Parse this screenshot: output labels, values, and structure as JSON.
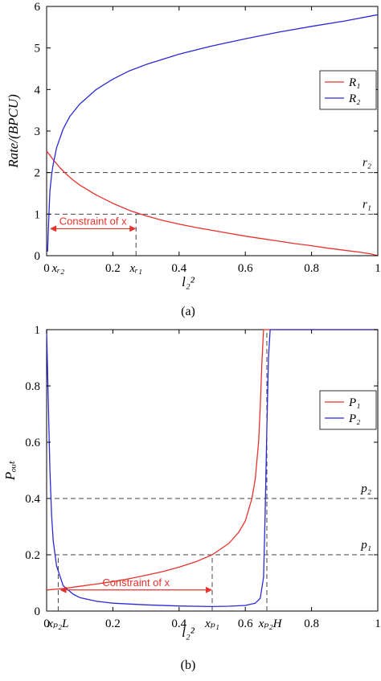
{
  "colors": {
    "red": "#e8322b",
    "blue": "#2a2ad8",
    "dash": "#444444",
    "axis": "#000000"
  },
  "chart_data": [
    {
      "type": "line",
      "caption": "(a)",
      "xlabel": "l₂²",
      "ylabel": "Rate/(BPCU)",
      "xlim": [
        0,
        1
      ],
      "ylim": [
        0,
        6
      ],
      "xticks": [
        "0",
        "0.2",
        "0.4",
        "0.6",
        "0.8",
        "1"
      ],
      "yticks": [
        "0",
        "1",
        "2",
        "3",
        "4",
        "5",
        "6"
      ],
      "legend_position": "top-right",
      "series": [
        {
          "name": "R₁",
          "color": "red",
          "x": [
            0,
            0.02,
            0.04,
            0.06,
            0.08,
            0.1,
            0.15,
            0.2,
            0.25,
            0.3,
            0.35,
            0.4,
            0.45,
            0.5,
            0.55,
            0.6,
            0.65,
            0.7,
            0.75,
            0.8,
            0.85,
            0.9,
            0.95,
            0.98,
            1.0
          ],
          "y": [
            2.52,
            2.31,
            2.12,
            1.96,
            1.82,
            1.7,
            1.46,
            1.26,
            1.09,
            0.96,
            0.85,
            0.76,
            0.68,
            0.61,
            0.54,
            0.47,
            0.41,
            0.35,
            0.29,
            0.24,
            0.18,
            0.13,
            0.08,
            0.04,
            0.0
          ]
        },
        {
          "name": "R₂",
          "color": "blue",
          "x": [
            0.003,
            0.005,
            0.008,
            0.01,
            0.015,
            0.02,
            0.03,
            0.05,
            0.07,
            0.1,
            0.15,
            0.2,
            0.25,
            0.3,
            0.4,
            0.5,
            0.6,
            0.7,
            0.8,
            0.9,
            1.0
          ],
          "y": [
            0.1,
            0.6,
            1.2,
            1.55,
            1.95,
            2.2,
            2.6,
            3.05,
            3.35,
            3.65,
            4.0,
            4.25,
            4.45,
            4.6,
            4.85,
            5.05,
            5.22,
            5.38,
            5.52,
            5.65,
            5.8
          ]
        }
      ],
      "hlines": [
        {
          "y": 2,
          "label": "r₂"
        },
        {
          "y": 1,
          "label": "r₁"
        }
      ],
      "vlines": [
        {
          "x": 0.27,
          "ymax": 1
        }
      ],
      "annotation": {
        "text": "Constraint of x",
        "y": 0.65,
        "x_from": 0.01,
        "x_to": 0.27
      },
      "extra_xlabels": [
        {
          "x": 0.035,
          "text": "xᵣ₂"
        },
        {
          "x": 0.27,
          "text": "xᵣ₁"
        }
      ]
    },
    {
      "type": "line",
      "caption": "(b)",
      "xlabel": "l₂²",
      "ylabel": "Pₒᵤₜ",
      "xlim": [
        0,
        1
      ],
      "ylim": [
        0,
        1
      ],
      "xticks": [
        "0",
        "0.2",
        "0.4",
        "0.6",
        "0.8",
        "1"
      ],
      "yticks": [
        "0",
        "0.2",
        "0.4",
        "0.6",
        "0.8",
        "1"
      ],
      "legend_position": "top-right",
      "series": [
        {
          "name": "P₁",
          "color": "red",
          "x": [
            0,
            0.05,
            0.1,
            0.15,
            0.2,
            0.25,
            0.3,
            0.35,
            0.4,
            0.45,
            0.5,
            0.55,
            0.58,
            0.6,
            0.62,
            0.63,
            0.64,
            0.645,
            0.65,
            0.655,
            1.0
          ],
          "y": [
            0.075,
            0.08,
            0.088,
            0.096,
            0.105,
            0.115,
            0.127,
            0.14,
            0.156,
            0.175,
            0.2,
            0.24,
            0.28,
            0.32,
            0.4,
            0.47,
            0.6,
            0.72,
            0.88,
            1.0,
            1.0
          ]
        },
        {
          "name": "P₂",
          "color": "blue",
          "x": [
            0,
            0.01,
            0.015,
            0.02,
            0.03,
            0.05,
            0.08,
            0.1,
            0.15,
            0.2,
            0.3,
            0.4,
            0.5,
            0.55,
            0.6,
            0.63,
            0.645,
            0.655,
            0.66,
            0.665,
            0.67,
            0.675,
            1.0
          ],
          "y": [
            1.0,
            0.5,
            0.34,
            0.25,
            0.16,
            0.09,
            0.06,
            0.048,
            0.035,
            0.028,
            0.022,
            0.018,
            0.016,
            0.017,
            0.02,
            0.028,
            0.045,
            0.12,
            0.35,
            0.65,
            0.9,
            1.0,
            1.0
          ]
        }
      ],
      "hlines": [
        {
          "y": 0.4,
          "label": "p₂"
        },
        {
          "y": 0.2,
          "label": "p₁"
        }
      ],
      "vlines": [
        {
          "x": 0.035,
          "ymax": 0.2
        },
        {
          "x": 0.5,
          "ymax": 0.2
        },
        {
          "x": 0.665,
          "ymax": 1
        }
      ],
      "annotation": {
        "text": "Constraint of x",
        "y": 0.075,
        "x_from": 0.04,
        "x_to": 0.5
      },
      "extra_xlabels": [
        {
          "x": 0.035,
          "text": "xₚ₂L"
        },
        {
          "x": 0.5,
          "text": "xₚ₁"
        },
        {
          "x": 0.675,
          "text": "xₚ₂H"
        }
      ]
    }
  ]
}
